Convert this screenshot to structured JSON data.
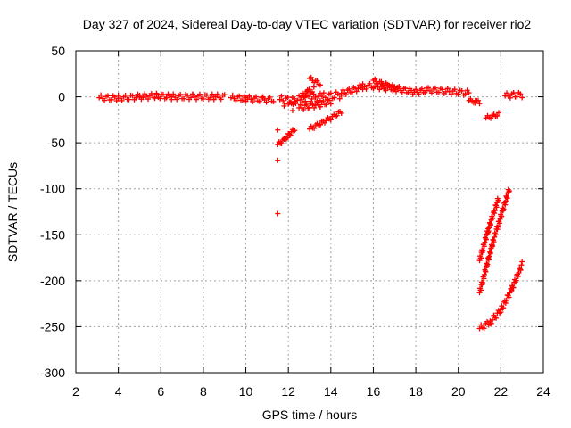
{
  "chart_data": {
    "type": "scatter",
    "title": "Day 327 of 2024, Sidereal Day-to-day VTEC variation (SDTVAR) for receiver rio2",
    "xlabel": "GPS time / hours",
    "ylabel": "SDTVAR / TECUs",
    "xlim": [
      2,
      24
    ],
    "ylim": [
      -300,
      50
    ],
    "xticks": [
      2,
      4,
      6,
      8,
      10,
      12,
      14,
      16,
      18,
      20,
      22,
      24
    ],
    "yticks": [
      50,
      0,
      -50,
      -100,
      -150,
      -200,
      -250,
      -300
    ],
    "grid": true,
    "marker": "+",
    "colors": {
      "series": "#ff0000",
      "grid": "#a0a0a0",
      "axis": "#000000"
    },
    "series": [
      {
        "name": "band-0",
        "type": "band",
        "x": [
          3.1,
          4.0,
          5.0,
          5.8,
          6.5,
          7.5,
          8.5,
          9.0
        ],
        "y": [
          -1,
          -1.5,
          0,
          1,
          0,
          0,
          0,
          0
        ],
        "spread": 3
      },
      {
        "name": "band-1",
        "type": "band",
        "x": [
          9.3,
          10.0,
          10.8,
          11.3
        ],
        "y": [
          -1,
          -2,
          -3,
          -3
        ],
        "spread": 3
      },
      {
        "name": "band-2",
        "type": "band",
        "x": [
          11.6,
          12.2,
          12.8,
          13.5,
          14.5
        ],
        "y": [
          -3,
          -4,
          -2,
          0,
          2
        ],
        "spread": 4
      },
      {
        "name": "band-3",
        "type": "band",
        "x": [
          14.5,
          15.0,
          15.5,
          16.0,
          16.5,
          17.0,
          17.5,
          18.0,
          18.5,
          19.0,
          19.5,
          20.0,
          20.5
        ],
        "y": [
          4,
          7,
          11,
          12,
          10,
          9,
          7,
          5,
          7,
          7,
          6,
          5,
          4
        ],
        "spread": 3
      },
      {
        "name": "arc-16",
        "type": "band",
        "x": [
          16.0,
          16.6,
          17.2
        ],
        "y": [
          18,
          13,
          9
        ],
        "spread": 2
      },
      {
        "name": "arc-13a",
        "type": "band",
        "x": [
          12.5,
          13.0,
          13.5,
          14.0
        ],
        "y": [
          -12,
          -10,
          -8,
          -5
        ],
        "spread": 3
      },
      {
        "name": "arc-13b",
        "type": "band",
        "x": [
          12.6,
          12.9,
          13.2
        ],
        "y": [
          0,
          5,
          8
        ],
        "spread": 3
      },
      {
        "name": "arc-13c",
        "type": "band",
        "x": [
          13.0,
          13.5
        ],
        "y": [
          20,
          14
        ],
        "spread": 2
      },
      {
        "name": "arc-14",
        "type": "band",
        "x": [
          13.0,
          13.5,
          14.0,
          14.5
        ],
        "y": [
          -35,
          -29,
          -23,
          -16
        ],
        "spread": 2
      },
      {
        "name": "arc-11a",
        "type": "band",
        "x": [
          11.5,
          11.8,
          12.0,
          12.3
        ],
        "y": [
          -52,
          -47,
          -42,
          -35
        ],
        "spread": 2
      },
      {
        "name": "arc-11b",
        "type": "band",
        "x": [
          12.0,
          12.3
        ],
        "y": [
          -8,
          -6
        ],
        "spread": 2
      },
      {
        "name": "arc-20",
        "type": "band",
        "x": [
          20.5,
          20.8,
          21.0
        ],
        "y": [
          -4,
          -5,
          -6
        ],
        "spread": 2
      },
      {
        "name": "arc-21",
        "type": "band",
        "x": [
          21.3,
          21.6,
          21.9
        ],
        "y": [
          -23,
          -21,
          -19
        ],
        "spread": 2
      },
      {
        "name": "arc-22a",
        "type": "band",
        "x": [
          22.2,
          22.6,
          23.0
        ],
        "y": [
          1,
          2,
          2
        ],
        "spread": 3
      },
      {
        "name": "arc-lowA",
        "type": "band",
        "x": [
          21.0,
          21.4,
          21.9
        ],
        "y": [
          -178,
          -145,
          -110
        ],
        "spread": 3
      },
      {
        "name": "arc-lowB",
        "type": "band",
        "x": [
          21.0,
          21.6,
          22.4
        ],
        "y": [
          -213,
          -160,
          -100
        ],
        "spread": 3
      },
      {
        "name": "arc-lowC",
        "type": "band",
        "x": [
          21.0,
          21.5,
          22.0,
          22.5,
          23.0
        ],
        "y": [
          -252,
          -245,
          -232,
          -210,
          -182
        ],
        "spread": 3
      },
      {
        "name": "outliers",
        "type": "points",
        "x": [
          11.5,
          11.5,
          11.5,
          11.8,
          12.2
        ],
        "y": [
          -36,
          -69,
          -127,
          -10,
          -15
        ]
      }
    ]
  }
}
